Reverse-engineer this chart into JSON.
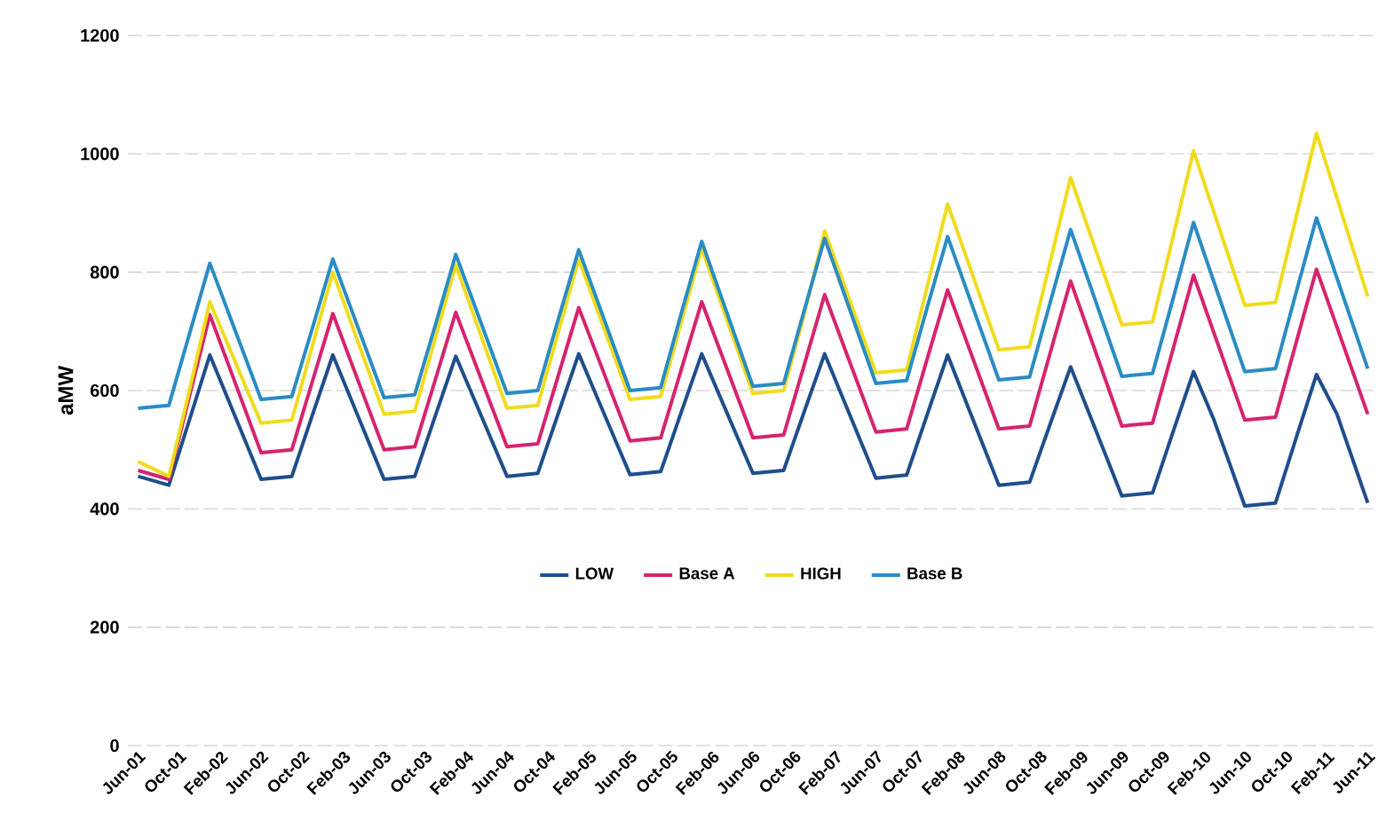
{
  "chart_data": {
    "type": "line",
    "ylabel": "aMW",
    "ylim": [
      0,
      1200
    ],
    "yticks": [
      0,
      200,
      400,
      600,
      800,
      1000,
      1200
    ],
    "xlim": [
      "2001-05",
      "2011-07"
    ],
    "xticks": [
      {
        "value": "2001-06",
        "label": "Jun-01"
      },
      {
        "value": "2001-10",
        "label": "Oct-01"
      },
      {
        "value": "2002-02",
        "label": "Feb-02"
      },
      {
        "value": "2002-06",
        "label": "Jun-02"
      },
      {
        "value": "2002-10",
        "label": "Oct-02"
      },
      {
        "value": "2003-02",
        "label": "Feb-03"
      },
      {
        "value": "2003-06",
        "label": "Jun-03"
      },
      {
        "value": "2003-10",
        "label": "Oct-03"
      },
      {
        "value": "2004-02",
        "label": "Feb-04"
      },
      {
        "value": "2004-06",
        "label": "Jun-04"
      },
      {
        "value": "2004-10",
        "label": "Oct-04"
      },
      {
        "value": "2005-02",
        "label": "Feb-05"
      },
      {
        "value": "2005-06",
        "label": "Jun-05"
      },
      {
        "value": "2005-10",
        "label": "Oct-05"
      },
      {
        "value": "2006-02",
        "label": "Feb-06"
      },
      {
        "value": "2006-06",
        "label": "Jun-06"
      },
      {
        "value": "2006-10",
        "label": "Oct-06"
      },
      {
        "value": "2007-02",
        "label": "Feb-07"
      },
      {
        "value": "2007-06",
        "label": "Jun-07"
      },
      {
        "value": "2007-10",
        "label": "Oct-07"
      },
      {
        "value": "2008-02",
        "label": "Feb-08"
      },
      {
        "value": "2008-06",
        "label": "Jun-08"
      },
      {
        "value": "2008-10",
        "label": "Oct-08"
      },
      {
        "value": "2009-02",
        "label": "Feb-09"
      },
      {
        "value": "2009-06",
        "label": "Jun-09"
      },
      {
        "value": "2009-10",
        "label": "Oct-09"
      },
      {
        "value": "2010-02",
        "label": "Feb-10"
      },
      {
        "value": "2010-06",
        "label": "Jun-10"
      },
      {
        "value": "2010-10",
        "label": "Oct-10"
      },
      {
        "value": "2011-02",
        "label": "Feb-11"
      },
      {
        "value": "2011-06",
        "label": "Jun-11"
      }
    ],
    "x": [
      "2001-06",
      "2001-09",
      "2001-11",
      "2002-01",
      "2002-03",
      "2002-06",
      "2002-09",
      "2002-11",
      "2003-01",
      "2003-03",
      "2003-06",
      "2003-09",
      "2003-11",
      "2004-01",
      "2004-03",
      "2004-06",
      "2004-09",
      "2004-11",
      "2005-01",
      "2005-03",
      "2005-06",
      "2005-09",
      "2005-11",
      "2006-01",
      "2006-03",
      "2006-06",
      "2006-09",
      "2006-11",
      "2007-01",
      "2007-03",
      "2007-06",
      "2007-09",
      "2007-11",
      "2008-01",
      "2008-03",
      "2008-06",
      "2008-09",
      "2008-11",
      "2009-01",
      "2009-03",
      "2009-06",
      "2009-09",
      "2009-11",
      "2010-01",
      "2010-03",
      "2010-06",
      "2010-09",
      "2010-11",
      "2011-01",
      "2011-03",
      "2011-06"
    ],
    "series": [
      {
        "name": "LOW",
        "color": "#1f4e8c",
        "values": [
          455,
          440,
          550,
          660,
          576,
          450,
          455,
          558,
          660,
          576,
          450,
          455,
          557,
          658,
          577,
          455,
          460,
          561,
          662,
          580,
          458,
          463,
          563,
          662,
          581,
          460,
          465,
          564,
          662,
          578,
          452,
          457,
          559,
          660,
          572,
          440,
          445,
          543,
          640,
          553,
          422,
          427,
          530,
          632,
          550,
          405,
          410,
          519,
          627,
          560,
          410
        ]
      },
      {
        "name": "Base A",
        "color": "#d6246e",
        "values": [
          465,
          450,
          590,
          728,
          635,
          495,
          500,
          615,
          730,
          638,
          500,
          505,
          618,
          732,
          641,
          505,
          510,
          625,
          740,
          650,
          515,
          520,
          635,
          750,
          658,
          520,
          525,
          643,
          762,
          669,
          530,
          535,
          653,
          770,
          676,
          535,
          540,
          663,
          785,
          687,
          540,
          545,
          670,
          795,
          697,
          550,
          555,
          680,
          805,
          707,
          560
        ]
      },
      {
        "name": "HIGH",
        "color": "#f0dc1e",
        "values": [
          480,
          455,
          600,
          750,
          668,
          545,
          550,
          675,
          800,
          704,
          560,
          565,
          688,
          812,
          715,
          570,
          575,
          698,
          822,
          727,
          585,
          590,
          715,
          840,
          742,
          595,
          600,
          728,
          870,
          774,
          630,
          635,
          775,
          915,
          817,
          669,
          674,
          817,
          960,
          860,
          711,
          716,
          860,
          1005,
          901,
          744,
          749,
          892,
          1035,
          925,
          759
        ]
      },
      {
        "name": "Base B",
        "color": "#2a8cc4",
        "values": [
          570,
          575,
          695,
          815,
          723,
          585,
          590,
          705,
          822,
          728,
          588,
          593,
          710,
          830,
          736,
          595,
          600,
          720,
          838,
          743,
          600,
          605,
          730,
          852,
          754,
          607,
          612,
          735,
          857,
          759,
          612,
          617,
          740,
          860,
          763,
          618,
          623,
          748,
          872,
          773,
          624,
          629,
          755,
          884,
          783,
          632,
          637,
          765,
          892,
          790,
          637
        ]
      }
    ],
    "grid": "y",
    "legend": "bottom",
    "line_style": "solid",
    "marker": "none"
  }
}
